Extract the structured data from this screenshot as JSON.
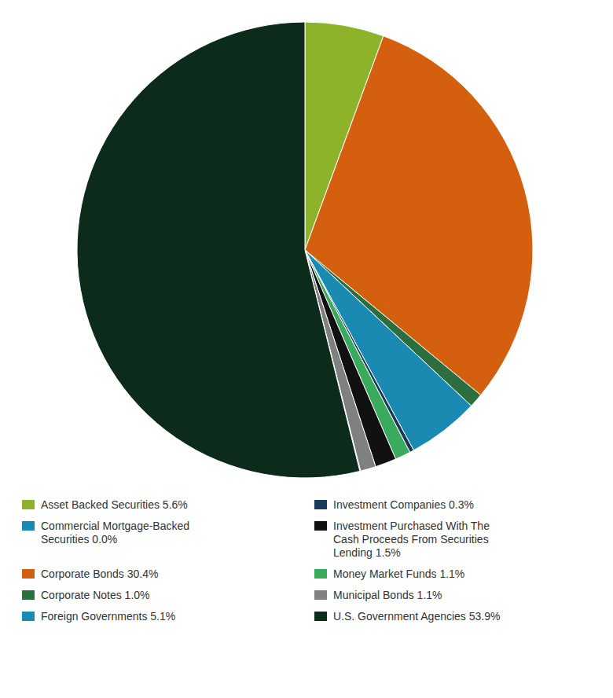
{
  "chart_data": {
    "type": "pie",
    "values": [
      5.6,
      30.4,
      1.0,
      5.1,
      0.3,
      1.1,
      1.5,
      1.1,
      0.05,
      53.9
    ],
    "colors": [
      "#8db32a",
      "#d45f0f",
      "#2d6e3e",
      "#1b8ab3",
      "#1a3a5c",
      "#3aab5c",
      "#111111",
      "#808080",
      "#1b8ab3",
      "#0d2b1a"
    ],
    "legend_entries": [
      {
        "label": "Asset Backed Securities 5.6%",
        "color": "#8db32a"
      },
      {
        "label": "Commercial Mortgage-Backed\nSecurities 0.0%",
        "color": "#1b8ab3"
      },
      {
        "label": "Corporate Bonds 30.4%",
        "color": "#d45f0f"
      },
      {
        "label": "Corporate Notes 1.0%",
        "color": "#2d6e3e"
      },
      {
        "label": "Foreign Governments 5.1%",
        "color": "#1b8ab3"
      },
      {
        "label": "Investment Companies 0.3%",
        "color": "#1a3a5c"
      },
      {
        "label": "Investment Purchased With The\nCash Proceeds From Securities\nLending 1.5%",
        "color": "#111111"
      },
      {
        "label": "Money Market Funds 1.1%",
        "color": "#3aab5c"
      },
      {
        "label": "Municipal Bonds 1.1%",
        "color": "#808080"
      },
      {
        "label": "U.S. Government Agencies 53.9%",
        "color": "#0d2b1a"
      }
    ]
  }
}
